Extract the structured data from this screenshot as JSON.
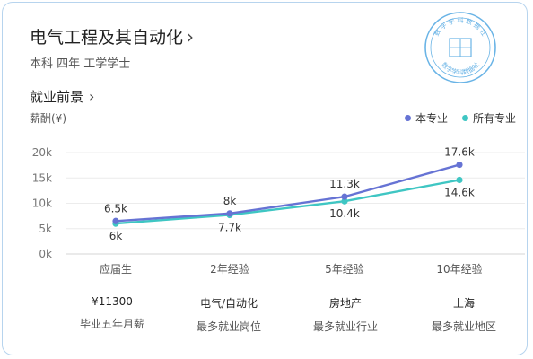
{
  "header": {
    "title": "电气工程及其自动化",
    "chevron_icon": "chevron-right-icon",
    "subtitle": "本科 四年 工学学士"
  },
  "section": {
    "title": "就业前景",
    "chevron_icon": "chevron-right-icon",
    "unit": "薪酬(¥)"
  },
  "legend": [
    {
      "label": "本专业",
      "color": "#6673d4"
    },
    {
      "label": "所有专业",
      "color": "#3fc6c3"
    }
  ],
  "seal": {
    "text_top": "数 字 学 科 数 据 社",
    "text_bottom": "数字学科数据社",
    "color": "#6ab4e6"
  },
  "chart_data": {
    "type": "line",
    "categories": [
      "应届生",
      "2年经验",
      "5年经验",
      "10年经验"
    ],
    "yticks": [
      "0k",
      "5k",
      "10k",
      "15k",
      "20k"
    ],
    "ylim": [
      0,
      20
    ],
    "series": [
      {
        "name": "本专业",
        "color": "#6673d4",
        "values": [
          6.5,
          8,
          11.3,
          17.6
        ],
        "labels": [
          "6.5k",
          "8k",
          "11.3k",
          "17.6k"
        ]
      },
      {
        "name": "所有专业",
        "color": "#3fc6c3",
        "values": [
          6,
          7.7,
          10.4,
          14.6
        ],
        "labels": [
          "6k",
          "7.7k",
          "10.4k",
          "14.6k"
        ]
      }
    ]
  },
  "stats": [
    {
      "value": "¥11300",
      "label": "毕业五年月薪"
    },
    {
      "value": "电气/自动化",
      "label": "最多就业岗位"
    },
    {
      "value": "房地产",
      "label": "最多就业行业"
    },
    {
      "value": "上海",
      "label": "最多就业地区"
    }
  ]
}
